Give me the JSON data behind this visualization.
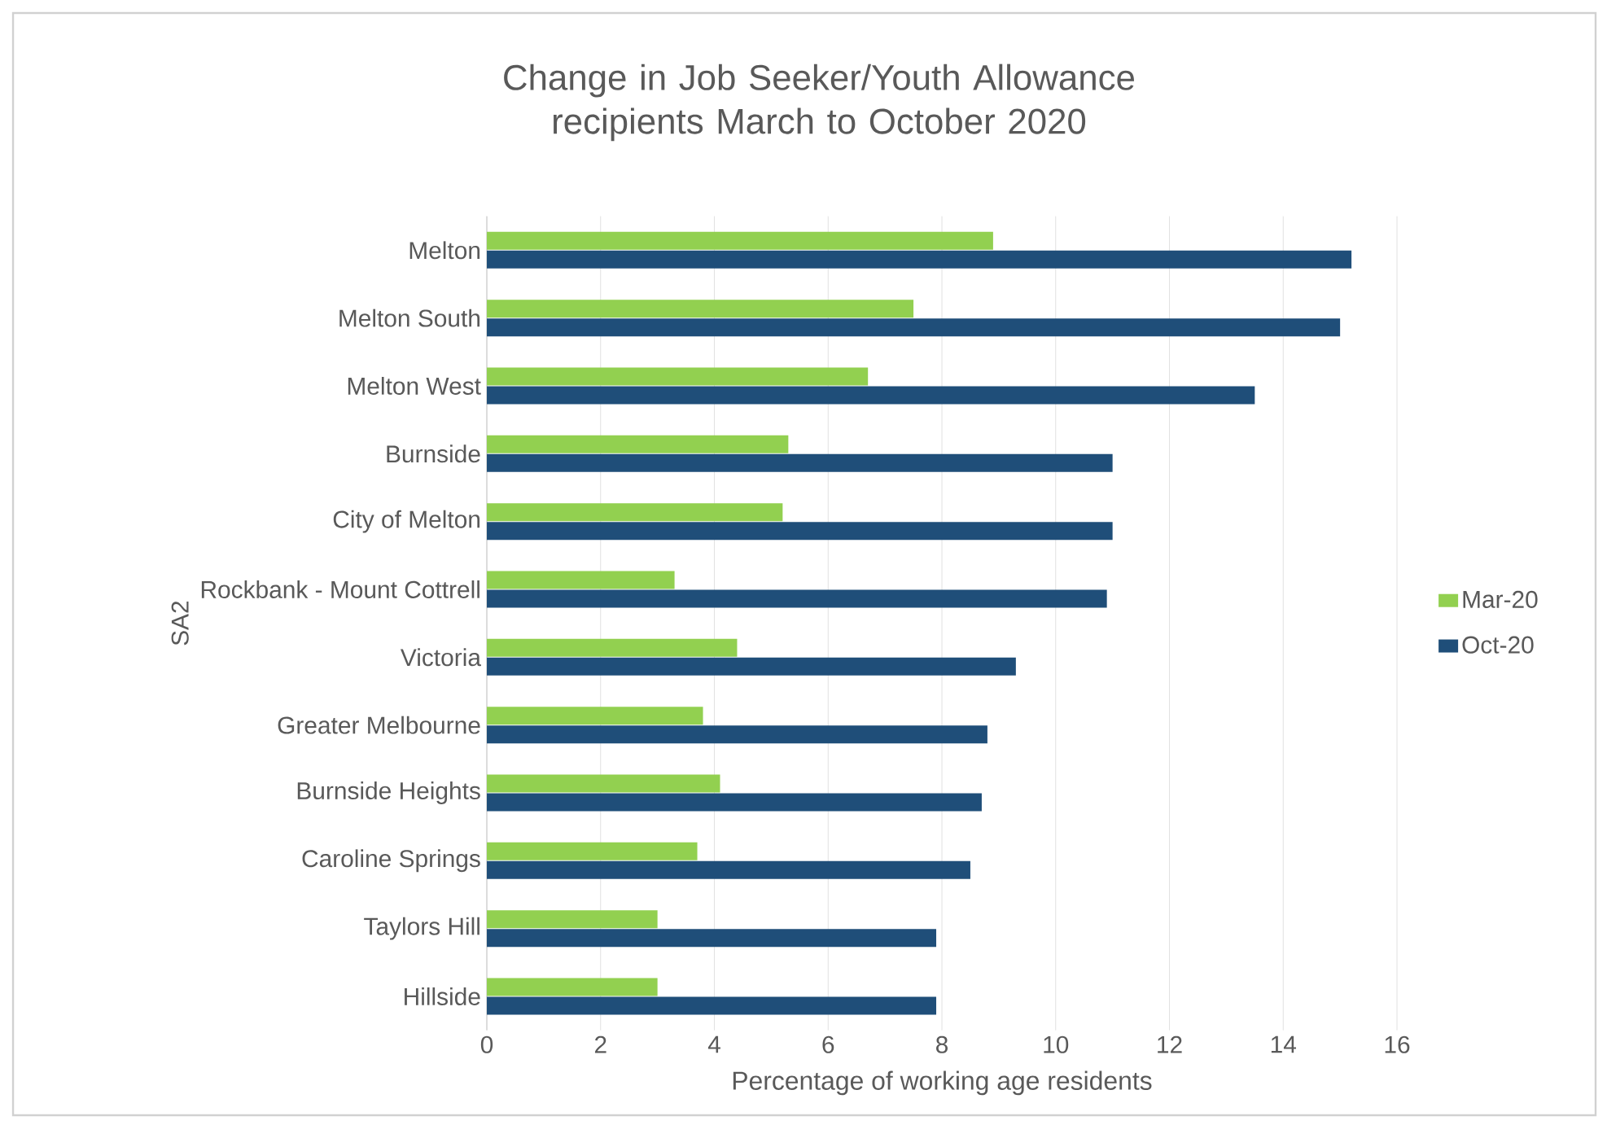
{
  "chart_data": {
    "type": "bar",
    "orientation": "horizontal",
    "title": "Change in Job Seeker/Youth Allowance recipients March to October 2020",
    "xlabel": "Percentage of working age residents",
    "ylabel": "SA2",
    "categories": [
      "Melton",
      "Melton South",
      "Melton West",
      "Burnside",
      "City of Melton",
      "Rockbank - Mount Cottrell",
      "Victoria",
      "Greater Melbourne",
      "Burnside Heights",
      "Caroline Springs",
      "Taylors Hill",
      "Hillside"
    ],
    "series": [
      {
        "name": "Mar-20",
        "color": "#92d050",
        "values": [
          8.9,
          7.5,
          6.7,
          5.3,
          5.2,
          3.3,
          4.4,
          3.8,
          4.1,
          3.7,
          3.0,
          3.0
        ]
      },
      {
        "name": "Oct-20",
        "color": "#1f4e79",
        "values": [
          15.2,
          15.0,
          13.5,
          11.0,
          11.0,
          10.9,
          9.3,
          8.8,
          8.7,
          8.5,
          7.9,
          7.9
        ]
      }
    ],
    "xlim": [
      0,
      16
    ],
    "xticks": [
      0,
      2,
      4,
      6,
      8,
      10,
      12,
      14,
      16
    ],
    "grid": "x",
    "legend": "right"
  }
}
